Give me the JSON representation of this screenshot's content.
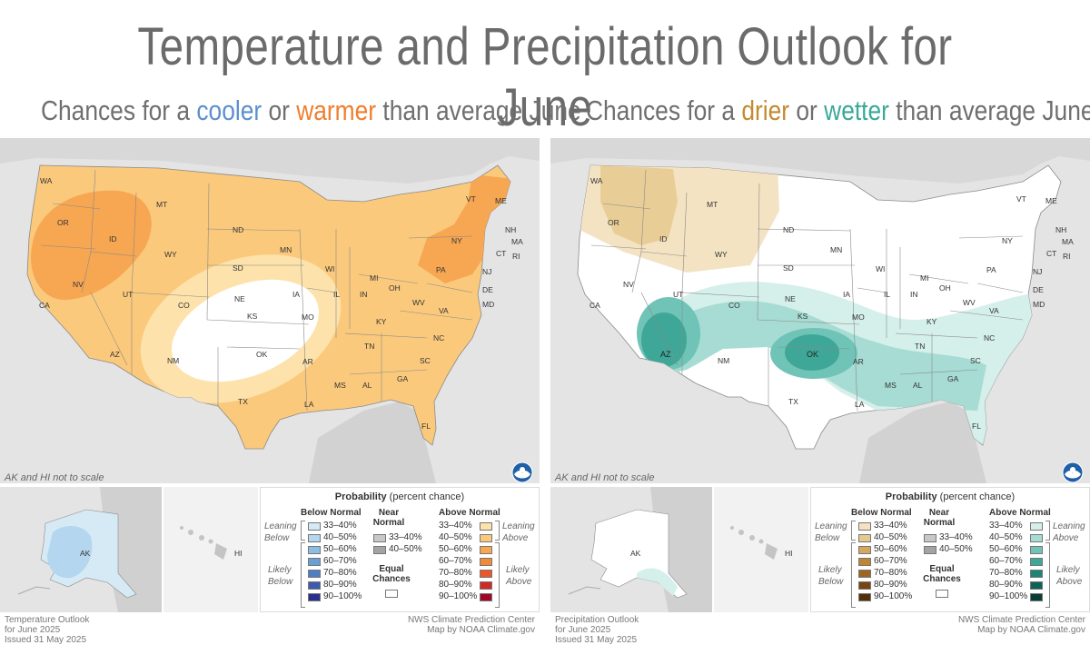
{
  "title": "Temperature and Precipitation Outlook for June",
  "left": {
    "subtitle_pre": "Chances for a ",
    "subtitle_word1": "cooler",
    "subtitle_mid": " or ",
    "subtitle_word2": "warmer",
    "subtitle_post": " than average June",
    "scale_note": "AK and HI not to scale",
    "legend": {
      "title_bold": "Probability",
      "title_rest": " (percent chance)",
      "below_head": "Below Normal",
      "near_head_1": "Near",
      "near_head_2": "Normal",
      "above_head": "Above Normal",
      "leaning_below": [
        "Leaning",
        "Below"
      ],
      "likely_below": [
        "Likely",
        "Below"
      ],
      "leaning_above": [
        "Leaning",
        "Above"
      ],
      "likely_above": [
        "Likely",
        "Above"
      ],
      "ranges": [
        "33–40%",
        "40–50%",
        "50–60%",
        "60–70%",
        "70–80%",
        "80–90%",
        "90–100%"
      ],
      "near_ranges": [
        "33–40%",
        "40–50%"
      ],
      "equal_1": "Equal",
      "equal_2": "Chances",
      "below_colors": [
        "#d6eaf6",
        "#b4d6ee",
        "#8cbde3",
        "#6a9fd3",
        "#4f7ec3",
        "#3d5aac",
        "#2a2f8e"
      ],
      "above_colors": [
        "#fde2ab",
        "#fbc97c",
        "#f7a652",
        "#f28a3c",
        "#e9582d",
        "#cf2a27",
        "#a0082a"
      ],
      "near_colors": [
        "#c8c8c8",
        "#a3a3a3"
      ]
    },
    "footer_lines": [
      "Temperature Outlook",
      "for June 2025",
      "Issued 31 May 2025"
    ],
    "credit_lines": [
      "NWS Climate Prediction Center",
      "Map by NOAA Climate.gov"
    ]
  },
  "right": {
    "subtitle_pre": "Chances for a ",
    "subtitle_word1": "drier",
    "subtitle_mid": " or ",
    "subtitle_word2": "wetter",
    "subtitle_post": " than average June",
    "scale_note": "AK and HI not to scale",
    "legend": {
      "title_bold": "Probability",
      "title_rest": " (percent chance)",
      "below_head": "Below Normal",
      "near_head_1": "Near",
      "near_head_2": "Normal",
      "above_head": "Above Normal",
      "leaning_below": [
        "Leaning",
        "Below"
      ],
      "likely_below": [
        "Likely",
        "Below"
      ],
      "leaning_above": [
        "Leaning",
        "Above"
      ],
      "likely_above": [
        "Likely",
        "Above"
      ],
      "ranges": [
        "33–40%",
        "40–50%",
        "50–60%",
        "60–70%",
        "70–80%",
        "80–90%",
        "90–100%"
      ],
      "near_ranges": [
        "33–40%",
        "40–50%"
      ],
      "equal_1": "Equal",
      "equal_2": "Chances",
      "below_colors": [
        "#f3e3c2",
        "#e6c98e",
        "#d4a85f",
        "#bf8535",
        "#9c6520",
        "#774611",
        "#52300a"
      ],
      "above_colors": [
        "#d5efea",
        "#a6dcd3",
        "#6fc4b7",
        "#3fa797",
        "#1f8475",
        "#0e6256",
        "#073f37"
      ],
      "near_colors": [
        "#c8c8c8",
        "#a3a3a3"
      ]
    },
    "footer_lines": [
      "Precipitation Outlook",
      "for June 2025",
      "Issued 31 May 2025"
    ],
    "credit_lines": [
      "NWS Climate Prediction Center",
      "Map by NOAA Climate.gov"
    ]
  },
  "state_labels": [
    "WA",
    "OR",
    "ID",
    "MT",
    "WY",
    "NV",
    "CA",
    "UT",
    "AZ",
    "CO",
    "NM",
    "ND",
    "SD",
    "NE",
    "KS",
    "OK",
    "TX",
    "MN",
    "IA",
    "MO",
    "AR",
    "LA",
    "WI",
    "IL",
    "MI",
    "IN",
    "OH",
    "KY",
    "TN",
    "MS",
    "AL",
    "GA",
    "FL",
    "SC",
    "NC",
    "VA",
    "WV",
    "PA",
    "NY",
    "VT",
    "NH",
    "ME",
    "MA",
    "CT",
    "RI",
    "NJ",
    "DE",
    "MD"
  ],
  "ak_label": "AK",
  "hi_label": "HI"
}
